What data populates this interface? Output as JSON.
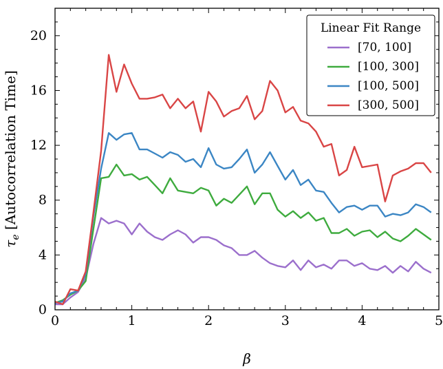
{
  "chart_data": {
    "type": "line",
    "xlabel": "β",
    "ylabel": "τ",
    "ylabel_sub": "e",
    "ylabel_rest": " [Autocorrelation Time]",
    "xlim": [
      0,
      5
    ],
    "ylim": [
      0,
      22
    ],
    "x_ticks": [
      0,
      1,
      2,
      3,
      4,
      5
    ],
    "y_ticks": [
      0,
      4,
      8,
      12,
      16,
      20
    ],
    "grid": false,
    "legend": {
      "title": "Linear Fit Range",
      "placement": "top-right"
    },
    "x": [
      0.0,
      0.1,
      0.2,
      0.3,
      0.4,
      0.5,
      0.6,
      0.7,
      0.8,
      0.9,
      1.0,
      1.1,
      1.2,
      1.3,
      1.4,
      1.5,
      1.6,
      1.7,
      1.8,
      1.9,
      2.0,
      2.1,
      2.2,
      2.3,
      2.4,
      2.5,
      2.6,
      2.7,
      2.8,
      2.9,
      3.0,
      3.1,
      3.2,
      3.3,
      3.4,
      3.5,
      3.6,
      3.7,
      3.8,
      3.9,
      4.0,
      4.1,
      4.2,
      4.3,
      4.4,
      4.5,
      4.6,
      4.7,
      4.8,
      4.9
    ],
    "series": [
      {
        "name": "[70, 100]",
        "color": "#9b6fcc",
        "values": [
          0.4,
          0.4,
          0.9,
          1.3,
          2.3,
          4.8,
          6.7,
          6.3,
          6.5,
          6.3,
          5.5,
          6.3,
          5.7,
          5.3,
          5.1,
          5.5,
          5.8,
          5.5,
          4.9,
          5.3,
          5.3,
          5.1,
          4.7,
          4.5,
          4.0,
          4.0,
          4.3,
          3.8,
          3.4,
          3.2,
          3.1,
          3.6,
          2.9,
          3.6,
          3.1,
          3.3,
          3.0,
          3.6,
          3.6,
          3.2,
          3.4,
          3.0,
          2.9,
          3.2,
          2.7,
          3.2,
          2.8,
          3.5,
          3.0,
          2.7
        ]
      },
      {
        "name": "[100, 300]",
        "color": "#3eab3e",
        "values": [
          0.5,
          0.7,
          1.1,
          1.4,
          2.1,
          5.9,
          9.6,
          9.7,
          10.6,
          9.8,
          9.9,
          9.5,
          9.7,
          9.1,
          8.5,
          9.6,
          8.7,
          8.6,
          8.5,
          8.9,
          8.7,
          7.6,
          8.1,
          7.8,
          8.4,
          9.0,
          7.7,
          8.5,
          8.5,
          7.3,
          6.8,
          7.2,
          6.7,
          7.1,
          6.5,
          6.7,
          5.6,
          5.6,
          5.9,
          5.4,
          5.7,
          5.8,
          5.3,
          5.7,
          5.2,
          5.0,
          5.4,
          5.9,
          5.5,
          5.1
        ]
      },
      {
        "name": "[100, 500]",
        "color": "#3b86c4",
        "values": [
          0.5,
          0.6,
          1.2,
          1.4,
          2.6,
          6.8,
          10.3,
          12.9,
          12.4,
          12.8,
          12.9,
          11.7,
          11.7,
          11.4,
          11.1,
          11.5,
          11.3,
          10.8,
          11.0,
          10.4,
          11.8,
          10.6,
          10.3,
          10.4,
          11.0,
          11.7,
          10.0,
          10.6,
          11.5,
          10.5,
          9.5,
          10.2,
          9.1,
          9.5,
          8.7,
          8.6,
          7.8,
          7.1,
          7.5,
          7.6,
          7.3,
          7.6,
          7.6,
          6.8,
          7.0,
          6.9,
          7.1,
          7.7,
          7.5,
          7.1
        ]
      },
      {
        "name": "[300, 500]",
        "color": "#d94545",
        "values": [
          0.6,
          0.4,
          1.5,
          1.4,
          2.8,
          7.1,
          11.6,
          18.6,
          15.9,
          17.9,
          16.5,
          15.4,
          15.4,
          15.5,
          15.7,
          14.7,
          15.4,
          14.7,
          15.2,
          13.0,
          15.9,
          15.2,
          14.1,
          14.5,
          14.7,
          15.6,
          13.9,
          14.5,
          16.7,
          16.0,
          14.4,
          14.8,
          13.8,
          13.6,
          13.0,
          11.9,
          12.1,
          9.8,
          10.2,
          11.9,
          10.4,
          10.5,
          10.6,
          7.9,
          9.8,
          10.1,
          10.3,
          10.7,
          10.7,
          10.0
        ]
      }
    ]
  }
}
